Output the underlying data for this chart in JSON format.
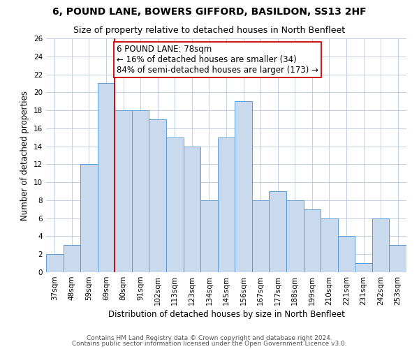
{
  "title": "6, POUND LANE, BOWERS GIFFORD, BASILDON, SS13 2HF",
  "subtitle": "Size of property relative to detached houses in North Benfleet",
  "xlabel": "Distribution of detached houses by size in North Benfleet",
  "ylabel": "Number of detached properties",
  "footnote1": "Contains HM Land Registry data © Crown copyright and database right 2024.",
  "footnote2": "Contains public sector information licensed under the Open Government Licence v3.0.",
  "categories": [
    "37sqm",
    "48sqm",
    "59sqm",
    "69sqm",
    "80sqm",
    "91sqm",
    "102sqm",
    "113sqm",
    "123sqm",
    "134sqm",
    "145sqm",
    "156sqm",
    "167sqm",
    "177sqm",
    "188sqm",
    "199sqm",
    "210sqm",
    "221sqm",
    "231sqm",
    "242sqm",
    "253sqm"
  ],
  "values": [
    2,
    3,
    12,
    21,
    18,
    18,
    17,
    15,
    14,
    8,
    15,
    19,
    8,
    9,
    8,
    7,
    6,
    4,
    1,
    6,
    3
  ],
  "bar_color": "#c9d9ee",
  "bar_edge_color": "#5b9bd5",
  "highlight_line_index": 4,
  "highlight_line_color": "#cc0000",
  "annotation_text": "6 POUND LANE: 78sqm\n← 16% of detached houses are smaller (34)\n84% of semi-detached houses are larger (173) →",
  "annotation_box_color": "#cc0000",
  "ylim": [
    0,
    26
  ],
  "yticks": [
    0,
    2,
    4,
    6,
    8,
    10,
    12,
    14,
    16,
    18,
    20,
    22,
    24,
    26
  ],
  "grid_color": "#b8c8de",
  "title_fontsize": 10,
  "subtitle_fontsize": 9,
  "annotation_fontsize": 8.5,
  "xlabel_fontsize": 8.5,
  "ylabel_fontsize": 8.5,
  "tick_fontsize": 7.5,
  "footnote_fontsize": 6.5
}
